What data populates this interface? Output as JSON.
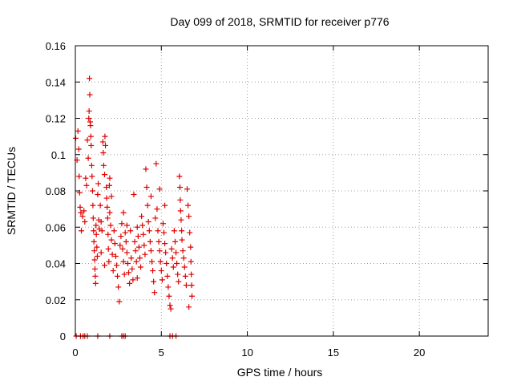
{
  "chart_data": {
    "type": "scatter",
    "title": "Day 099 of 2018, SRMTID for receiver p776",
    "xlabel": "GPS time / hours",
    "ylabel": "SRMTID / TECUs",
    "xlim": [
      0,
      24
    ],
    "ylim": [
      0,
      0.16
    ],
    "xticks": [
      0,
      5,
      10,
      15,
      20
    ],
    "yticks": [
      0,
      0.02,
      0.04,
      0.06,
      0.08,
      0.1,
      0.12,
      0.14,
      0.16
    ],
    "ytick_labels": [
      "0",
      "0.02",
      "0.04",
      "0.06",
      "0.08",
      "0.1",
      "0.12",
      "0.14",
      "0.16"
    ],
    "grid": true,
    "colors": {
      "points": "#e00000",
      "grid": "#a0a0a0"
    },
    "marker": "plus",
    "series": [
      {
        "values": [
          [
            0.02,
            0.109
          ],
          [
            0.1,
            0.097
          ],
          [
            0.15,
            0.113
          ],
          [
            0.2,
            0.103
          ],
          [
            0.22,
            0.088
          ],
          [
            0.25,
            0.079
          ],
          [
            0.28,
            0.071
          ],
          [
            0.32,
            0.068
          ],
          [
            0.35,
            0.058
          ],
          [
            0.42,
            0.066
          ],
          [
            0.5,
            0.069
          ],
          [
            0.55,
            0.063
          ],
          [
            0.6,
            0.087
          ],
          [
            0.65,
            0.083
          ],
          [
            0.7,
            0.108
          ],
          [
            0.75,
            0.098
          ],
          [
            0.78,
            0.12
          ],
          [
            0.8,
            0.124
          ],
          [
            0.82,
            0.142
          ],
          [
            0.84,
            0.133
          ],
          [
            0.86,
            0.118
          ],
          [
            0.88,
            0.116
          ],
          [
            0.9,
            0.11
          ],
          [
            0.92,
            0.105
          ],
          [
            0.95,
            0.094
          ],
          [
            0.97,
            0.088
          ],
          [
            1.0,
            0.08
          ],
          [
            1.02,
            0.072
          ],
          [
            1.04,
            0.065
          ],
          [
            1.06,
            0.058
          ],
          [
            1.08,
            0.052
          ],
          [
            1.1,
            0.047
          ],
          [
            1.12,
            0.042
          ],
          [
            1.14,
            0.037
          ],
          [
            1.16,
            0.033
          ],
          [
            1.18,
            0.029
          ],
          [
            1.2,
            0.061
          ],
          [
            1.22,
            0.056
          ],
          [
            1.25,
            0.049
          ],
          [
            1.28,
            0.044
          ],
          [
            1.3,
            0.078
          ],
          [
            1.33,
            0.084
          ],
          [
            1.36,
            0.064
          ],
          [
            1.4,
            0.059
          ],
          [
            1.45,
            0.072
          ],
          [
            1.5,
            0.063
          ],
          [
            1.55,
            0.058
          ],
          [
            1.6,
            0.107
          ],
          [
            1.62,
            0.101
          ],
          [
            1.65,
            0.094
          ],
          [
            1.7,
            0.089
          ],
          [
            1.72,
            0.11
          ],
          [
            1.75,
            0.105
          ],
          [
            1.8,
            0.082
          ],
          [
            1.82,
            0.076
          ],
          [
            1.85,
            0.071
          ],
          [
            1.88,
            0.065
          ],
          [
            1.9,
            0.056
          ],
          [
            1.92,
            0.048
          ],
          [
            1.95,
            0.041
          ],
          [
            1.98,
            0.083
          ],
          [
            2.0,
            0.068
          ],
          [
            2.05,
            0.061
          ],
          [
            2.1,
            0.053
          ],
          [
            2.15,
            0.045
          ],
          [
            2.2,
            0.036
          ],
          [
            2.25,
            0.058
          ],
          [
            2.3,
            0.051
          ],
          [
            2.35,
            0.044
          ],
          [
            2.4,
            0.039
          ],
          [
            2.45,
            0.033
          ],
          [
            2.5,
            0.027
          ],
          [
            2.55,
            0.019
          ],
          [
            2.6,
            0.05
          ],
          [
            2.65,
            0.055
          ],
          [
            2.7,
            0.062
          ],
          [
            2.75,
            0.048
          ],
          [
            2.8,
            0.041
          ],
          [
            2.85,
            0.034
          ],
          [
            2.9,
            0.057
          ],
          [
            2.95,
            0.052
          ],
          [
            3.0,
            0.046
          ],
          [
            3.05,
            0.04
          ],
          [
            3.1,
            0.035
          ],
          [
            3.15,
            0.029
          ],
          [
            3.2,
            0.058
          ],
          [
            3.25,
            0.043
          ],
          [
            3.3,
            0.037
          ],
          [
            3.35,
            0.031
          ],
          [
            3.4,
            0.078
          ],
          [
            3.45,
            0.052
          ],
          [
            3.5,
            0.047
          ],
          [
            3.55,
            0.041
          ],
          [
            3.6,
            0.06
          ],
          [
            3.65,
            0.055
          ],
          [
            3.7,
            0.049
          ],
          [
            3.75,
            0.043
          ],
          [
            3.8,
            0.038
          ],
          [
            3.85,
            0.066
          ],
          [
            3.9,
            0.061
          ],
          [
            3.95,
            0.056
          ],
          [
            4.0,
            0.05
          ],
          [
            4.05,
            0.045
          ],
          [
            4.1,
            0.092
          ],
          [
            4.15,
            0.082
          ],
          [
            4.2,
            0.072
          ],
          [
            4.25,
            0.063
          ],
          [
            4.3,
            0.058
          ],
          [
            4.35,
            0.052
          ],
          [
            4.4,
            0.047
          ],
          [
            4.45,
            0.041
          ],
          [
            4.5,
            0.036
          ],
          [
            4.55,
            0.03
          ],
          [
            4.6,
            0.024
          ],
          [
            4.65,
            0.065
          ],
          [
            4.7,
            0.095
          ],
          [
            4.75,
            0.07
          ],
          [
            4.8,
            0.058
          ],
          [
            4.85,
            0.052
          ],
          [
            4.9,
            0.047
          ],
          [
            4.95,
            0.041
          ],
          [
            5.0,
            0.036
          ],
          [
            5.05,
            0.031
          ],
          [
            5.1,
            0.062
          ],
          [
            5.15,
            0.057
          ],
          [
            5.2,
            0.051
          ],
          [
            5.25,
            0.046
          ],
          [
            5.3,
            0.04
          ],
          [
            5.35,
            0.033
          ],
          [
            5.4,
            0.027
          ],
          [
            5.45,
            0.022
          ],
          [
            5.5,
            0.017
          ],
          [
            5.55,
            0.015
          ],
          [
            5.6,
            0.048
          ],
          [
            5.65,
            0.043
          ],
          [
            5.7,
            0.038
          ],
          [
            5.75,
            0.058
          ],
          [
            5.8,
            0.052
          ],
          [
            5.85,
            0.046
          ],
          [
            5.9,
            0.04
          ],
          [
            5.95,
            0.034
          ],
          [
            6.0,
            0.03
          ],
          [
            6.05,
            0.088
          ],
          [
            6.08,
            0.082
          ],
          [
            6.1,
            0.075
          ],
          [
            6.12,
            0.069
          ],
          [
            6.15,
            0.064
          ],
          [
            6.18,
            0.058
          ],
          [
            6.2,
            0.053
          ],
          [
            6.25,
            0.047
          ],
          [
            6.3,
            0.043
          ],
          [
            6.35,
            0.038
          ],
          [
            6.4,
            0.033
          ],
          [
            6.45,
            0.028
          ],
          [
            6.5,
            0.081
          ],
          [
            6.55,
            0.072
          ],
          [
            6.6,
            0.066
          ],
          [
            6.65,
            0.057
          ],
          [
            6.7,
            0.049
          ],
          [
            6.72,
            0.041
          ],
          [
            6.74,
            0.034
          ],
          [
            6.76,
            0.028
          ],
          [
            6.78,
            0.022
          ],
          [
            6.6,
            0.016
          ],
          [
            2.0,
            0.087
          ],
          [
            2.1,
            0.077
          ],
          [
            3.6,
            0.032
          ],
          [
            4.4,
            0.077
          ],
          [
            4.9,
            0.081
          ],
          [
            5.2,
            0.072
          ],
          [
            3.0,
            0.061
          ],
          [
            2.8,
            0.068
          ],
          [
            1.5,
            0.046
          ],
          [
            1.7,
            0.039
          ]
        ]
      },
      {
        "values": [
          [
            0.05,
            0
          ],
          [
            0.3,
            0
          ],
          [
            0.45,
            0
          ],
          [
            0.55,
            0
          ],
          [
            0.7,
            0
          ],
          [
            1.3,
            0
          ],
          [
            2.0,
            0
          ],
          [
            2.7,
            0
          ],
          [
            2.8,
            0
          ],
          [
            2.9,
            0
          ],
          [
            5.5,
            0
          ],
          [
            5.65,
            0
          ],
          [
            5.85,
            0
          ]
        ]
      }
    ]
  }
}
